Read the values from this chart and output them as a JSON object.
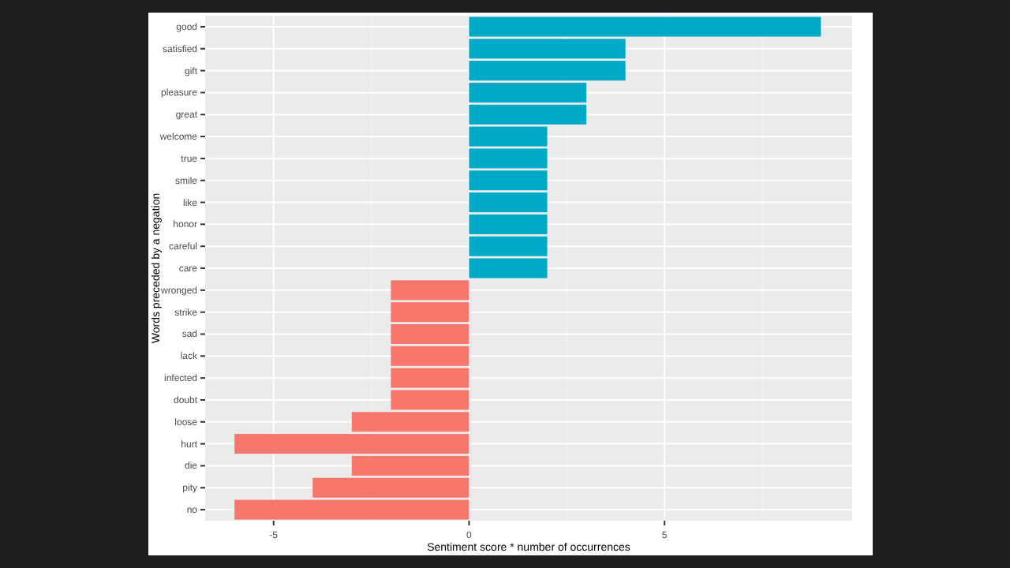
{
  "chart_data": {
    "type": "bar",
    "orientation": "horizontal",
    "xlabel": "Sentiment score * number of occurrences",
    "ylabel": "Words preceded by a negation",
    "categories": [
      "good",
      "satisfied",
      "gift",
      "pleasure",
      "great",
      "welcome",
      "true",
      "smile",
      "like",
      "honor",
      "careful",
      "care",
      "wronged",
      "strike",
      "sad",
      "lack",
      "infected",
      "doubt",
      "loose",
      "hurt",
      "die",
      "pity",
      "no"
    ],
    "values": [
      9,
      4,
      4,
      3,
      3,
      2,
      2,
      2,
      2,
      2,
      2,
      2,
      -2,
      -2,
      -2,
      -2,
      -2,
      -2,
      -3,
      -6,
      -3,
      -4,
      -6
    ],
    "colors": [
      "#00a9c5",
      "#00a9c5",
      "#00a9c5",
      "#00a9c5",
      "#00a9c5",
      "#00a9c5",
      "#00a9c5",
      "#00a9c5",
      "#00a9c5",
      "#00a9c5",
      "#00a9c5",
      "#00a9c5",
      "#f8776d",
      "#f8776d",
      "#f8776d",
      "#f8776d",
      "#f8776d",
      "#f8776d",
      "#f8776d",
      "#f8776d",
      "#f8776d",
      "#f8776d",
      "#f8776d"
    ],
    "xlim": [
      -6.75,
      9.8
    ],
    "xticks": [
      -5,
      0,
      5
    ],
    "grid": true
  }
}
